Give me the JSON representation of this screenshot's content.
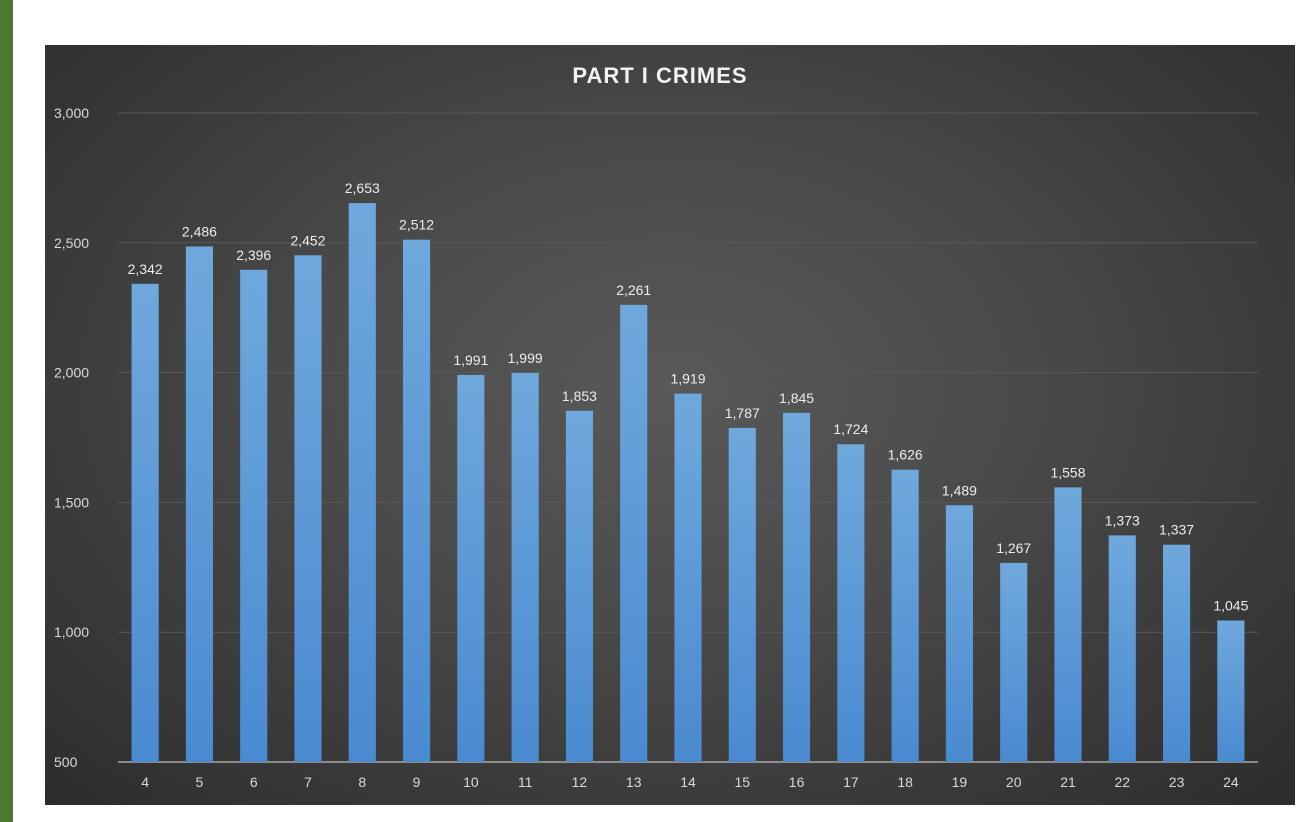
{
  "chart_data": {
    "type": "bar",
    "title": "PART I CRIMES",
    "xlabel": "",
    "ylabel": "",
    "categories": [
      "4",
      "5",
      "6",
      "7",
      "8",
      "9",
      "10",
      "11",
      "12",
      "13",
      "14",
      "15",
      "16",
      "17",
      "18",
      "19",
      "20",
      "21",
      "22",
      "23",
      "24"
    ],
    "values": [
      2342,
      2486,
      2396,
      2452,
      2653,
      2512,
      1991,
      1999,
      1853,
      2261,
      1919,
      1787,
      1845,
      1724,
      1626,
      1489,
      1267,
      1558,
      1373,
      1337,
      1045
    ],
    "data_labels": [
      "2,342",
      "2,486",
      "2,396",
      "2,452",
      "2,653",
      "2,512",
      "1,991",
      "1,999",
      "1,853",
      "2,261",
      "1,919",
      "1,787",
      "1,845",
      "1,724",
      "1,626",
      "1,489",
      "1,267",
      "1,558",
      "1,373",
      "1,337",
      "1,045"
    ],
    "ylim": [
      500,
      3000
    ],
    "yticks": [
      500,
      1000,
      1500,
      2000,
      2500,
      3000
    ],
    "ytick_labels": [
      "500",
      "1,000",
      "1,500",
      "2,000",
      "2,500",
      "3,000"
    ],
    "grid": true,
    "legend": "none",
    "colors": {
      "bar": "#5b9bd5",
      "panel_background": "#404040",
      "gridline": "#595959",
      "text": "#d9d9d9",
      "side_strip": "#4d7a2c"
    }
  }
}
